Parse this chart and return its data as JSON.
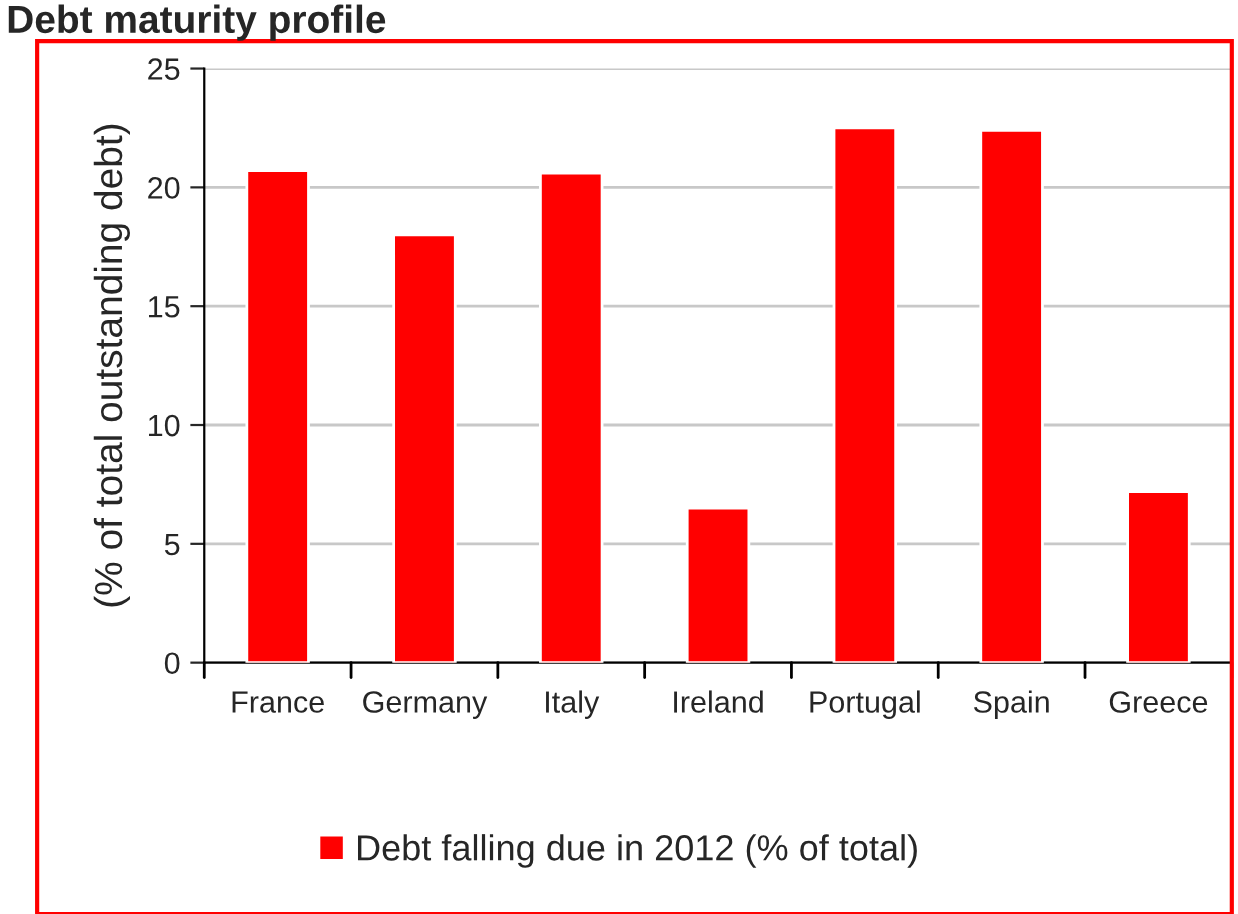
{
  "chart_data": {
    "type": "bar",
    "title": "Debt maturity profile",
    "ylabel": "(% of total outstanding debt)",
    "categories": [
      "France",
      "Germany",
      "Italy",
      "Ireland",
      "Portugal",
      "Spain",
      "Greece"
    ],
    "series": [
      {
        "name": "Debt falling due in 2012 (% of total)",
        "color": "#ff0000",
        "values": [
          20.7,
          18.0,
          20.6,
          6.5,
          22.5,
          22.4,
          7.2
        ]
      }
    ],
    "ylim": [
      0,
      25
    ],
    "yticks": [
      0,
      5,
      10,
      15,
      20,
      25
    ],
    "grid": "y",
    "legend": "bottom"
  }
}
